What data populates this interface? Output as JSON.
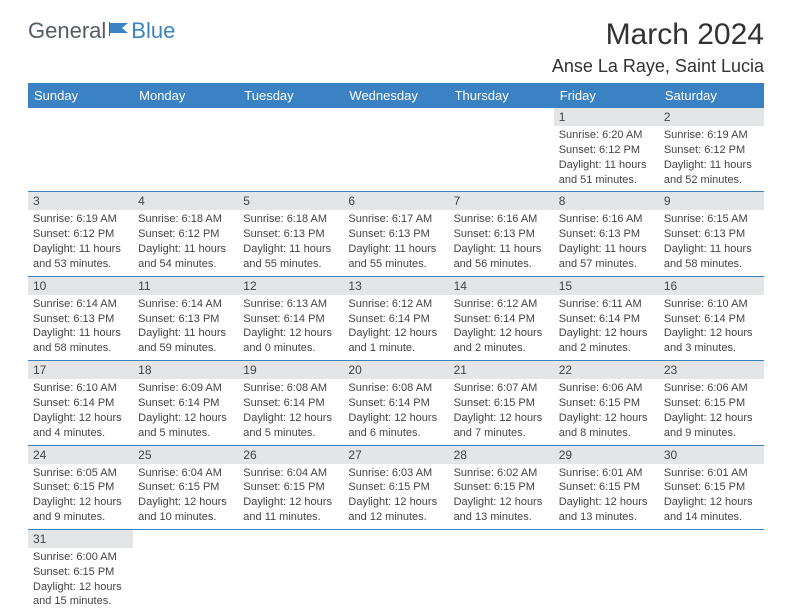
{
  "logo": {
    "part1": "General",
    "part2": "Blue"
  },
  "title": "March 2024",
  "location": "Anse La Raye, Saint Lucia",
  "colors": {
    "header_bg": "#3b82c4",
    "header_text": "#ffffff",
    "daynum_bg": "#e4e5e6",
    "row_border": "#3b82c4",
    "text": "#444444",
    "logo_gray": "#555c63",
    "logo_blue": "#3b82c4"
  },
  "day_headers": [
    "Sunday",
    "Monday",
    "Tuesday",
    "Wednesday",
    "Thursday",
    "Friday",
    "Saturday"
  ],
  "weeks": [
    [
      null,
      null,
      null,
      null,
      null,
      {
        "n": "1",
        "sr": "Sunrise: 6:20 AM",
        "ss": "Sunset: 6:12 PM",
        "dl1": "Daylight: 11 hours",
        "dl2": "and 51 minutes."
      },
      {
        "n": "2",
        "sr": "Sunrise: 6:19 AM",
        "ss": "Sunset: 6:12 PM",
        "dl1": "Daylight: 11 hours",
        "dl2": "and 52 minutes."
      }
    ],
    [
      {
        "n": "3",
        "sr": "Sunrise: 6:19 AM",
        "ss": "Sunset: 6:12 PM",
        "dl1": "Daylight: 11 hours",
        "dl2": "and 53 minutes."
      },
      {
        "n": "4",
        "sr": "Sunrise: 6:18 AM",
        "ss": "Sunset: 6:12 PM",
        "dl1": "Daylight: 11 hours",
        "dl2": "and 54 minutes."
      },
      {
        "n": "5",
        "sr": "Sunrise: 6:18 AM",
        "ss": "Sunset: 6:13 PM",
        "dl1": "Daylight: 11 hours",
        "dl2": "and 55 minutes."
      },
      {
        "n": "6",
        "sr": "Sunrise: 6:17 AM",
        "ss": "Sunset: 6:13 PM",
        "dl1": "Daylight: 11 hours",
        "dl2": "and 55 minutes."
      },
      {
        "n": "7",
        "sr": "Sunrise: 6:16 AM",
        "ss": "Sunset: 6:13 PM",
        "dl1": "Daylight: 11 hours",
        "dl2": "and 56 minutes."
      },
      {
        "n": "8",
        "sr": "Sunrise: 6:16 AM",
        "ss": "Sunset: 6:13 PM",
        "dl1": "Daylight: 11 hours",
        "dl2": "and 57 minutes."
      },
      {
        "n": "9",
        "sr": "Sunrise: 6:15 AM",
        "ss": "Sunset: 6:13 PM",
        "dl1": "Daylight: 11 hours",
        "dl2": "and 58 minutes."
      }
    ],
    [
      {
        "n": "10",
        "sr": "Sunrise: 6:14 AM",
        "ss": "Sunset: 6:13 PM",
        "dl1": "Daylight: 11 hours",
        "dl2": "and 58 minutes."
      },
      {
        "n": "11",
        "sr": "Sunrise: 6:14 AM",
        "ss": "Sunset: 6:13 PM",
        "dl1": "Daylight: 11 hours",
        "dl2": "and 59 minutes."
      },
      {
        "n": "12",
        "sr": "Sunrise: 6:13 AM",
        "ss": "Sunset: 6:14 PM",
        "dl1": "Daylight: 12 hours",
        "dl2": "and 0 minutes."
      },
      {
        "n": "13",
        "sr": "Sunrise: 6:12 AM",
        "ss": "Sunset: 6:14 PM",
        "dl1": "Daylight: 12 hours",
        "dl2": "and 1 minute."
      },
      {
        "n": "14",
        "sr": "Sunrise: 6:12 AM",
        "ss": "Sunset: 6:14 PM",
        "dl1": "Daylight: 12 hours",
        "dl2": "and 2 minutes."
      },
      {
        "n": "15",
        "sr": "Sunrise: 6:11 AM",
        "ss": "Sunset: 6:14 PM",
        "dl1": "Daylight: 12 hours",
        "dl2": "and 2 minutes."
      },
      {
        "n": "16",
        "sr": "Sunrise: 6:10 AM",
        "ss": "Sunset: 6:14 PM",
        "dl1": "Daylight: 12 hours",
        "dl2": "and 3 minutes."
      }
    ],
    [
      {
        "n": "17",
        "sr": "Sunrise: 6:10 AM",
        "ss": "Sunset: 6:14 PM",
        "dl1": "Daylight: 12 hours",
        "dl2": "and 4 minutes."
      },
      {
        "n": "18",
        "sr": "Sunrise: 6:09 AM",
        "ss": "Sunset: 6:14 PM",
        "dl1": "Daylight: 12 hours",
        "dl2": "and 5 minutes."
      },
      {
        "n": "19",
        "sr": "Sunrise: 6:08 AM",
        "ss": "Sunset: 6:14 PM",
        "dl1": "Daylight: 12 hours",
        "dl2": "and 5 minutes."
      },
      {
        "n": "20",
        "sr": "Sunrise: 6:08 AM",
        "ss": "Sunset: 6:14 PM",
        "dl1": "Daylight: 12 hours",
        "dl2": "and 6 minutes."
      },
      {
        "n": "21",
        "sr": "Sunrise: 6:07 AM",
        "ss": "Sunset: 6:15 PM",
        "dl1": "Daylight: 12 hours",
        "dl2": "and 7 minutes."
      },
      {
        "n": "22",
        "sr": "Sunrise: 6:06 AM",
        "ss": "Sunset: 6:15 PM",
        "dl1": "Daylight: 12 hours",
        "dl2": "and 8 minutes."
      },
      {
        "n": "23",
        "sr": "Sunrise: 6:06 AM",
        "ss": "Sunset: 6:15 PM",
        "dl1": "Daylight: 12 hours",
        "dl2": "and 9 minutes."
      }
    ],
    [
      {
        "n": "24",
        "sr": "Sunrise: 6:05 AM",
        "ss": "Sunset: 6:15 PM",
        "dl1": "Daylight: 12 hours",
        "dl2": "and 9 minutes."
      },
      {
        "n": "25",
        "sr": "Sunrise: 6:04 AM",
        "ss": "Sunset: 6:15 PM",
        "dl1": "Daylight: 12 hours",
        "dl2": "and 10 minutes."
      },
      {
        "n": "26",
        "sr": "Sunrise: 6:04 AM",
        "ss": "Sunset: 6:15 PM",
        "dl1": "Daylight: 12 hours",
        "dl2": "and 11 minutes."
      },
      {
        "n": "27",
        "sr": "Sunrise: 6:03 AM",
        "ss": "Sunset: 6:15 PM",
        "dl1": "Daylight: 12 hours",
        "dl2": "and 12 minutes."
      },
      {
        "n": "28",
        "sr": "Sunrise: 6:02 AM",
        "ss": "Sunset: 6:15 PM",
        "dl1": "Daylight: 12 hours",
        "dl2": "and 13 minutes."
      },
      {
        "n": "29",
        "sr": "Sunrise: 6:01 AM",
        "ss": "Sunset: 6:15 PM",
        "dl1": "Daylight: 12 hours",
        "dl2": "and 13 minutes."
      },
      {
        "n": "30",
        "sr": "Sunrise: 6:01 AM",
        "ss": "Sunset: 6:15 PM",
        "dl1": "Daylight: 12 hours",
        "dl2": "and 14 minutes."
      }
    ],
    [
      {
        "n": "31",
        "sr": "Sunrise: 6:00 AM",
        "ss": "Sunset: 6:15 PM",
        "dl1": "Daylight: 12 hours",
        "dl2": "and 15 minutes."
      },
      null,
      null,
      null,
      null,
      null,
      null
    ]
  ]
}
